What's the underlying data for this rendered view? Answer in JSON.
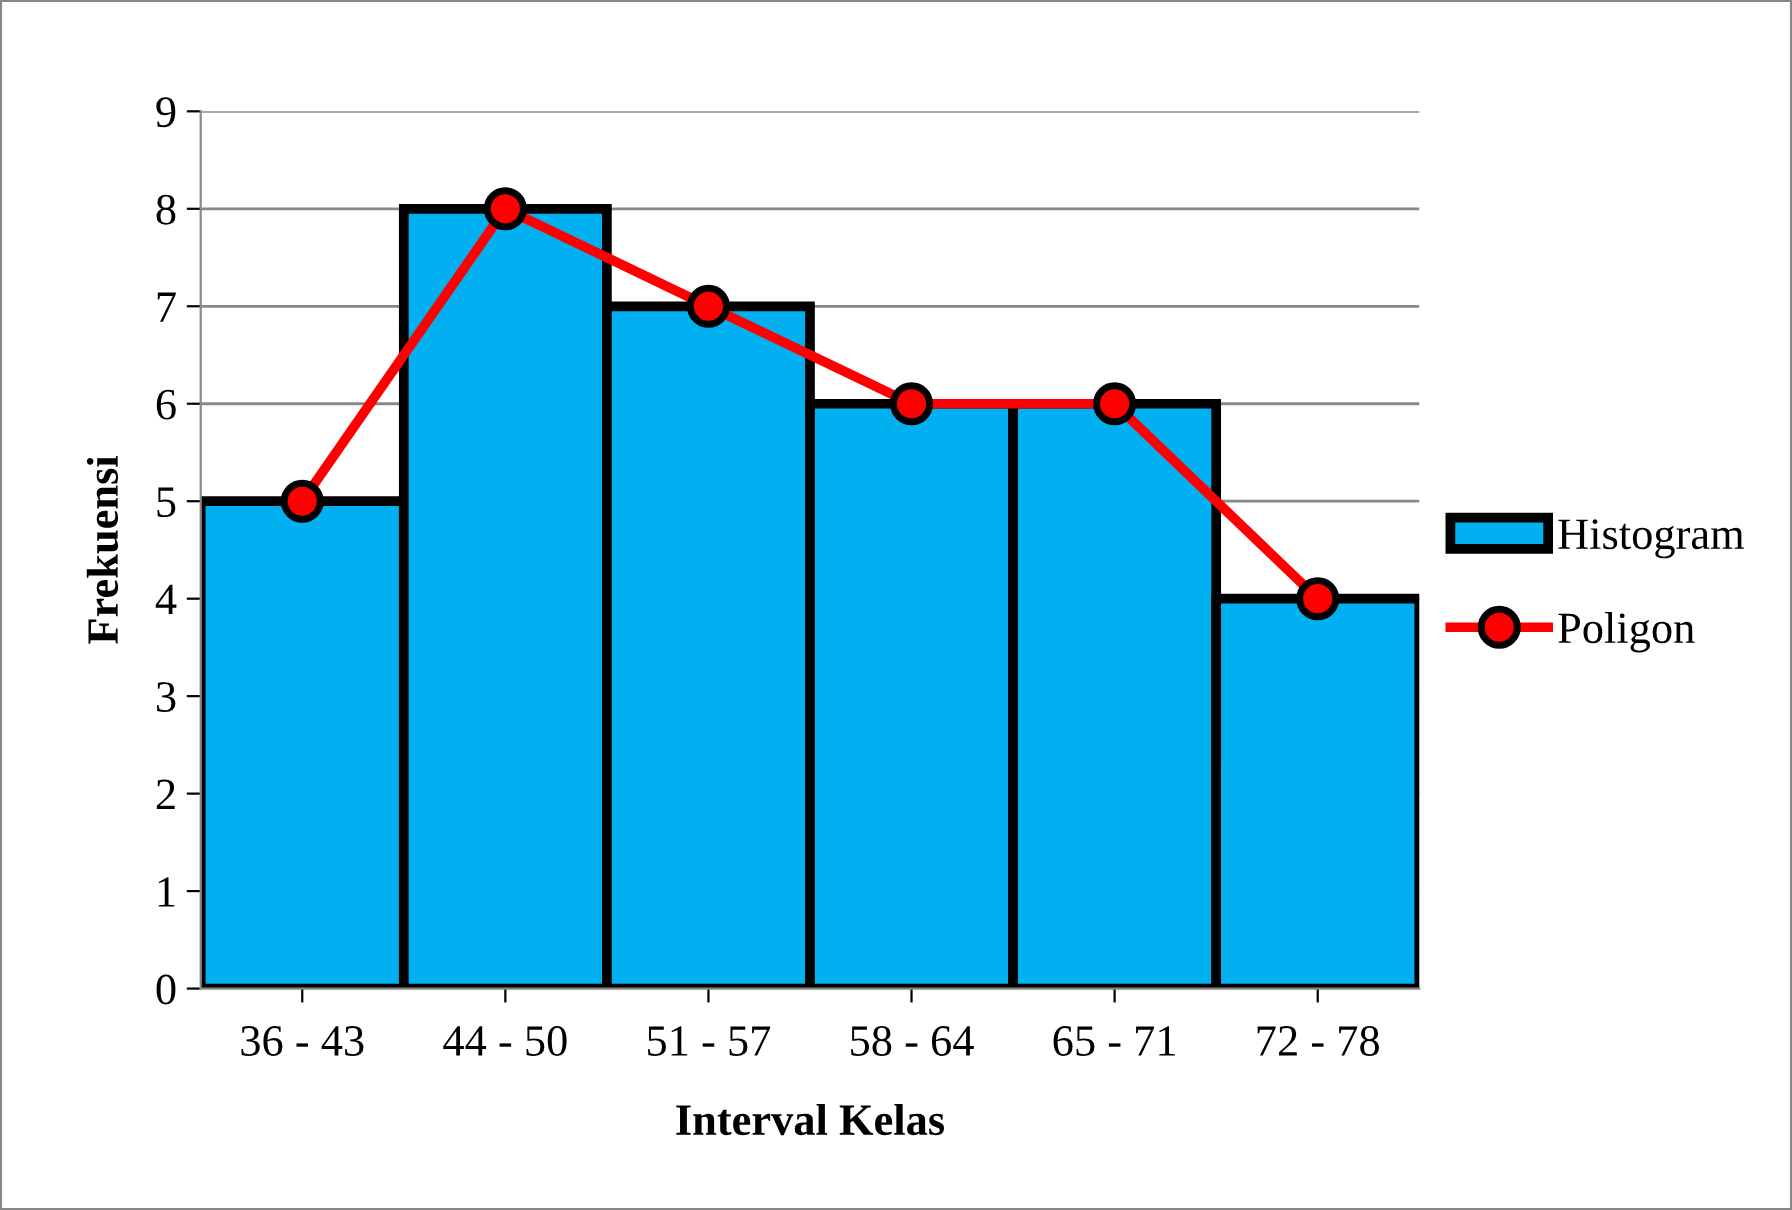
{
  "chart_data": {
    "type": "bar",
    "xlabel": "Interval Kelas",
    "ylabel": "Frekuensi",
    "categories": [
      "36 - 43",
      "44 - 50",
      "51 - 57",
      "58 - 64",
      "65 - 71",
      "72 - 78"
    ],
    "series": [
      {
        "name": "Histogram",
        "color": "#00b0f0",
        "values": [
          5,
          8,
          7,
          6,
          6,
          4
        ]
      },
      {
        "name": "Poligon",
        "type": "line",
        "color": "#ff0000",
        "marker": "circle",
        "values": [
          5,
          8,
          7,
          6,
          6,
          4
        ]
      }
    ],
    "ylim": [
      0,
      9
    ],
    "yticks": [
      0,
      1,
      2,
      3,
      4,
      5,
      6,
      7,
      8,
      9
    ],
    "grid": "y",
    "legend": "right"
  }
}
